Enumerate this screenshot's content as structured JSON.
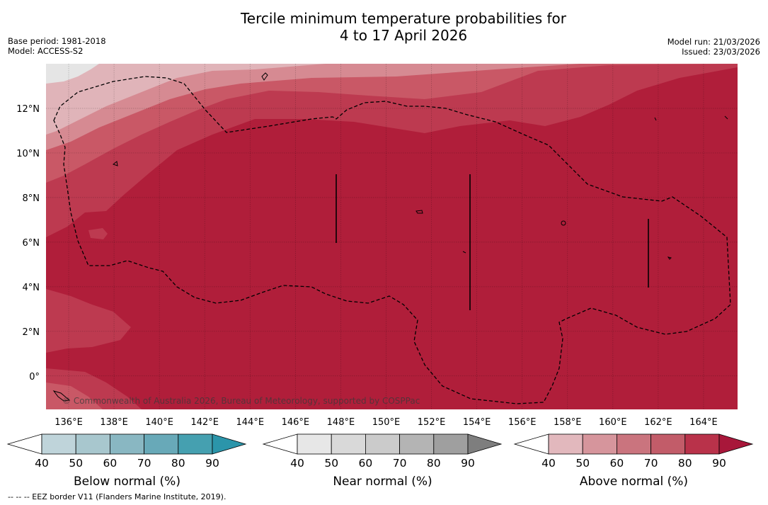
{
  "title": {
    "line1": "Tercile minimum temperature probabilities for",
    "line2": "4 to 17 April 2026"
  },
  "meta_left": {
    "base_period": "Base period: 1981-2018",
    "model": "Model: ACCESS-S2"
  },
  "meta_right": {
    "model_run": "Model run: 21/03/2026",
    "issued": "Issued: 23/03/2026"
  },
  "map": {
    "lon_range": [
      135,
      165.5
    ],
    "lat_range": [
      -1.5,
      14
    ],
    "lat_labels": [
      "12°N",
      "10°N",
      "8°N",
      "6°N",
      "4°N",
      "2°N",
      "0°"
    ],
    "lon_labels": [
      "136°E",
      "138°E",
      "140°E",
      "142°E",
      "144°E",
      "146°E",
      "148°E",
      "150°E",
      "152°E",
      "154°E",
      "156°E",
      "158°E",
      "160°E",
      "162°E",
      "164°E"
    ],
    "copyright": "© Commonwealth of Australia 2026, Bureau of Meteorology, supported by COSPPac",
    "colors": {
      "above_90": "#b01e3a",
      "above_80": "#bd3a50",
      "above_70": "#c95866",
      "above_60": "#d68a92",
      "above_50": "#e0b4b9",
      "near_40": "#e5e5e5"
    }
  },
  "colorbars": [
    {
      "title": "Below normal (%)",
      "ticks": [
        "40",
        "50",
        "60",
        "70",
        "80",
        "90"
      ],
      "colors": [
        "#ffffff",
        "#bfd4da",
        "#a8c7ce",
        "#89b7c2",
        "#68a9b8",
        "#45a0b0",
        "#2b95aa"
      ]
    },
    {
      "title": "Near normal (%)",
      "ticks": [
        "40",
        "50",
        "60",
        "70",
        "80",
        "90"
      ],
      "colors": [
        "#ffffff",
        "#e7e7e7",
        "#d9d9d9",
        "#cbcbcb",
        "#b4b4b4",
        "#9f9f9f",
        "#7e7e7e"
      ]
    },
    {
      "title": "Above normal (%)",
      "ticks": [
        "40",
        "50",
        "60",
        "70",
        "80",
        "90"
      ],
      "colors": [
        "#ffffff",
        "#e2b8bd",
        "#d6959c",
        "#ca747e",
        "#c25c69",
        "#b9324a",
        "#a8173a"
      ]
    }
  ],
  "footnote": "--  --  -- EEZ border V11 (Flanders Marine Institute, 2019)."
}
